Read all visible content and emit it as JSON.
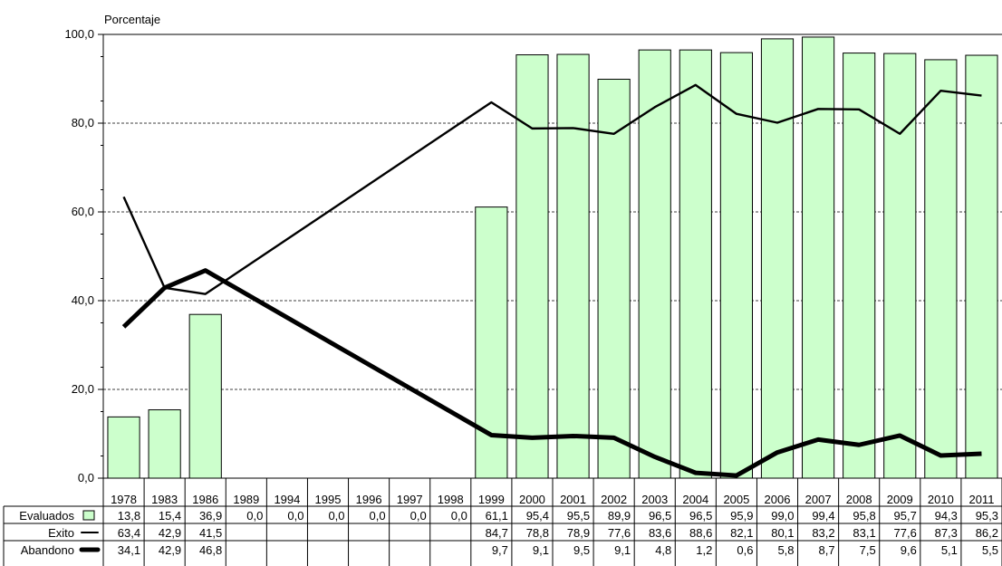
{
  "chart_data": {
    "type": "bar",
    "ylabel": "Porcentaje",
    "ylim": [
      0,
      100
    ],
    "yticks": [
      "0,0",
      "20,0",
      "40,0",
      "60,0",
      "80,0",
      "100,0"
    ],
    "grid": true,
    "categories": [
      "1978",
      "1983",
      "1986",
      "1989",
      "1994",
      "1995",
      "1996",
      "1997",
      "1998",
      "1999",
      "2000",
      "2001",
      "2002",
      "2003",
      "2004",
      "2005",
      "2006",
      "2007",
      "2008",
      "2009",
      "2010",
      "2011"
    ],
    "series": [
      {
        "name": "Evaluados",
        "kind": "bar",
        "color": "#ccffcc",
        "values": [
          13.8,
          15.4,
          36.9,
          0,
          0,
          0,
          0,
          0,
          0,
          61.1,
          95.4,
          95.5,
          89.9,
          96.5,
          96.5,
          95.9,
          99.0,
          99.4,
          95.8,
          95.7,
          94.3,
          95.3
        ],
        "labels": [
          "13,8",
          "15,4",
          "36,9",
          "0,0",
          "0,0",
          "0,0",
          "0,0",
          "0,0",
          "0,0",
          "61,1",
          "95,4",
          "95,5",
          "89,9",
          "96,5",
          "96,5",
          "95,9",
          "99,0",
          "99,4",
          "95,8",
          "95,7",
          "94,3",
          "95,3"
        ]
      },
      {
        "name": "Exito",
        "kind": "line",
        "color": "#000000",
        "values": [
          63.4,
          42.9,
          41.5,
          null,
          null,
          null,
          null,
          null,
          null,
          84.7,
          78.8,
          78.9,
          77.6,
          83.6,
          88.6,
          82.1,
          80.1,
          83.2,
          83.1,
          77.6,
          87.3,
          86.2
        ],
        "labels": [
          "63,4",
          "42,9",
          "41,5",
          "",
          "",
          "",
          "",
          "",
          "",
          "84,7",
          "78,8",
          "78,9",
          "77,6",
          "83,6",
          "88,6",
          "82,1",
          "80,1",
          "83,2",
          "83,1",
          "77,6",
          "87,3",
          "86,2"
        ]
      },
      {
        "name": "Abandono",
        "kind": "line",
        "color": "#000000",
        "values": [
          34.1,
          42.9,
          46.8,
          null,
          null,
          null,
          null,
          null,
          null,
          9.7,
          9.1,
          9.5,
          9.1,
          4.8,
          1.2,
          0.6,
          5.8,
          8.7,
          7.5,
          9.6,
          5.1,
          5.5
        ],
        "labels": [
          "34,1",
          "42,9",
          "46,8",
          "",
          "",
          "",
          "",
          "",
          "",
          "9,7",
          "9,1",
          "9,5",
          "9,1",
          "4,8",
          "1,2",
          "0,6",
          "5,8",
          "8,7",
          "7,5",
          "9,6",
          "5,1",
          "5,5"
        ]
      }
    ]
  }
}
